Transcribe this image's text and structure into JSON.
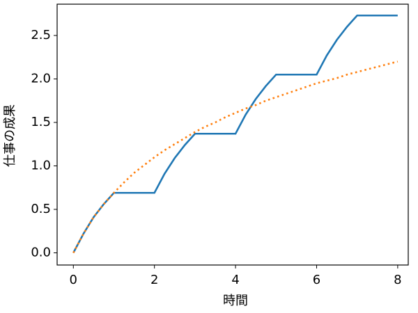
{
  "chart_data": {
    "type": "line",
    "xlabel": "時間",
    "ylabel": "仕事の成果",
    "x": [
      0,
      0.25,
      0.5,
      0.75,
      1,
      1.25,
      1.5,
      1.75,
      2,
      2.25,
      2.5,
      2.75,
      3,
      3.25,
      3.5,
      3.75,
      4,
      4.25,
      4.5,
      4.75,
      5,
      5.25,
      5.5,
      5.75,
      6,
      6.25,
      6.5,
      6.75,
      7,
      7.25,
      7.5,
      7.75,
      8
    ],
    "series": [
      {
        "color": "#1f77b4",
        "style": "solid",
        "values": [
          0,
          0.22,
          0.41,
          0.56,
          0.69,
          0.69,
          0.69,
          0.69,
          0.69,
          0.91,
          1.09,
          1.24,
          1.37,
          1.37,
          1.37,
          1.37,
          1.37,
          1.59,
          1.77,
          1.92,
          2.05,
          2.05,
          2.05,
          2.05,
          2.05,
          2.27,
          2.45,
          2.6,
          2.73,
          2.73,
          2.73,
          2.73,
          2.73
        ]
      },
      {
        "color": "#ff7f0e",
        "style": "dotted",
        "values": [
          0,
          0.22,
          0.41,
          0.56,
          0.69,
          0.81,
          0.92,
          1.01,
          1.1,
          1.18,
          1.25,
          1.32,
          1.39,
          1.45,
          1.5,
          1.56,
          1.61,
          1.66,
          1.7,
          1.75,
          1.79,
          1.83,
          1.87,
          1.91,
          1.95,
          1.98,
          2.01,
          2.05,
          2.08,
          2.11,
          2.14,
          2.17,
          2.2
        ]
      }
    ],
    "xlim": [
      -0.4,
      8.26
    ],
    "ylim": [
      -0.14,
      2.86
    ],
    "xticks": [
      0,
      2,
      4,
      6,
      8
    ],
    "yticks": [
      {
        "value": 0,
        "label": "0.0"
      },
      0.5,
      {
        "value": 1,
        "label": "1.0"
      },
      1.5,
      {
        "value": 2,
        "label": "2.0"
      },
      2.5
    ],
    "grid": false
  }
}
